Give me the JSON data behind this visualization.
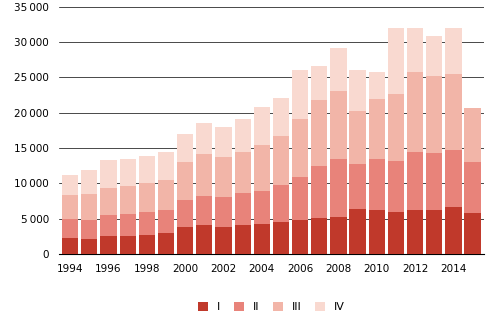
{
  "years": [
    1994,
    1995,
    1996,
    1997,
    1998,
    1999,
    2000,
    2001,
    2002,
    2003,
    2004,
    2005,
    2006,
    2007,
    2008,
    2009,
    2010,
    2011,
    2012,
    2013,
    2014,
    2015
  ],
  "Q1": [
    2300,
    2150,
    2650,
    2600,
    2750,
    3000,
    3800,
    4100,
    3800,
    4200,
    4300,
    4500,
    4900,
    5100,
    5300,
    6400,
    6200,
    6000,
    6200,
    6300,
    6700,
    5800
  ],
  "Q2": [
    2650,
    2700,
    2900,
    3100,
    3200,
    3200,
    3800,
    4200,
    4300,
    4500,
    4600,
    5300,
    6000,
    7400,
    8200,
    6400,
    7300,
    7200,
    8300,
    8000,
    8100,
    7200
  ],
  "Q3": [
    3400,
    3700,
    3800,
    4000,
    4100,
    4300,
    5400,
    5800,
    5600,
    5700,
    6600,
    6900,
    8200,
    9300,
    9500,
    7500,
    8400,
    9500,
    11300,
    10900,
    10600,
    7700
  ],
  "Q4": [
    2900,
    3350,
    3950,
    3700,
    3800,
    3900,
    4000,
    4500,
    4300,
    4700,
    5300,
    5400,
    7000,
    4800,
    6200,
    5700,
    3800,
    9300,
    6100,
    5700,
    6500,
    0
  ],
  "colors": [
    "#c0392b",
    "#e8837a",
    "#f2b5a8",
    "#f9d9d0"
  ],
  "ylim": [
    0,
    35000
  ],
  "yticks": [
    0,
    5000,
    10000,
    15000,
    20000,
    25000,
    30000,
    35000
  ],
  "xtick_years": [
    1994,
    1996,
    1998,
    2000,
    2002,
    2004,
    2006,
    2008,
    2010,
    2012,
    2014
  ],
  "legend_labels": [
    "I",
    "II",
    "III",
    "IV"
  ],
  "bar_width": 0.85,
  "figsize": [
    4.89,
    3.26
  ],
  "dpi": 100
}
